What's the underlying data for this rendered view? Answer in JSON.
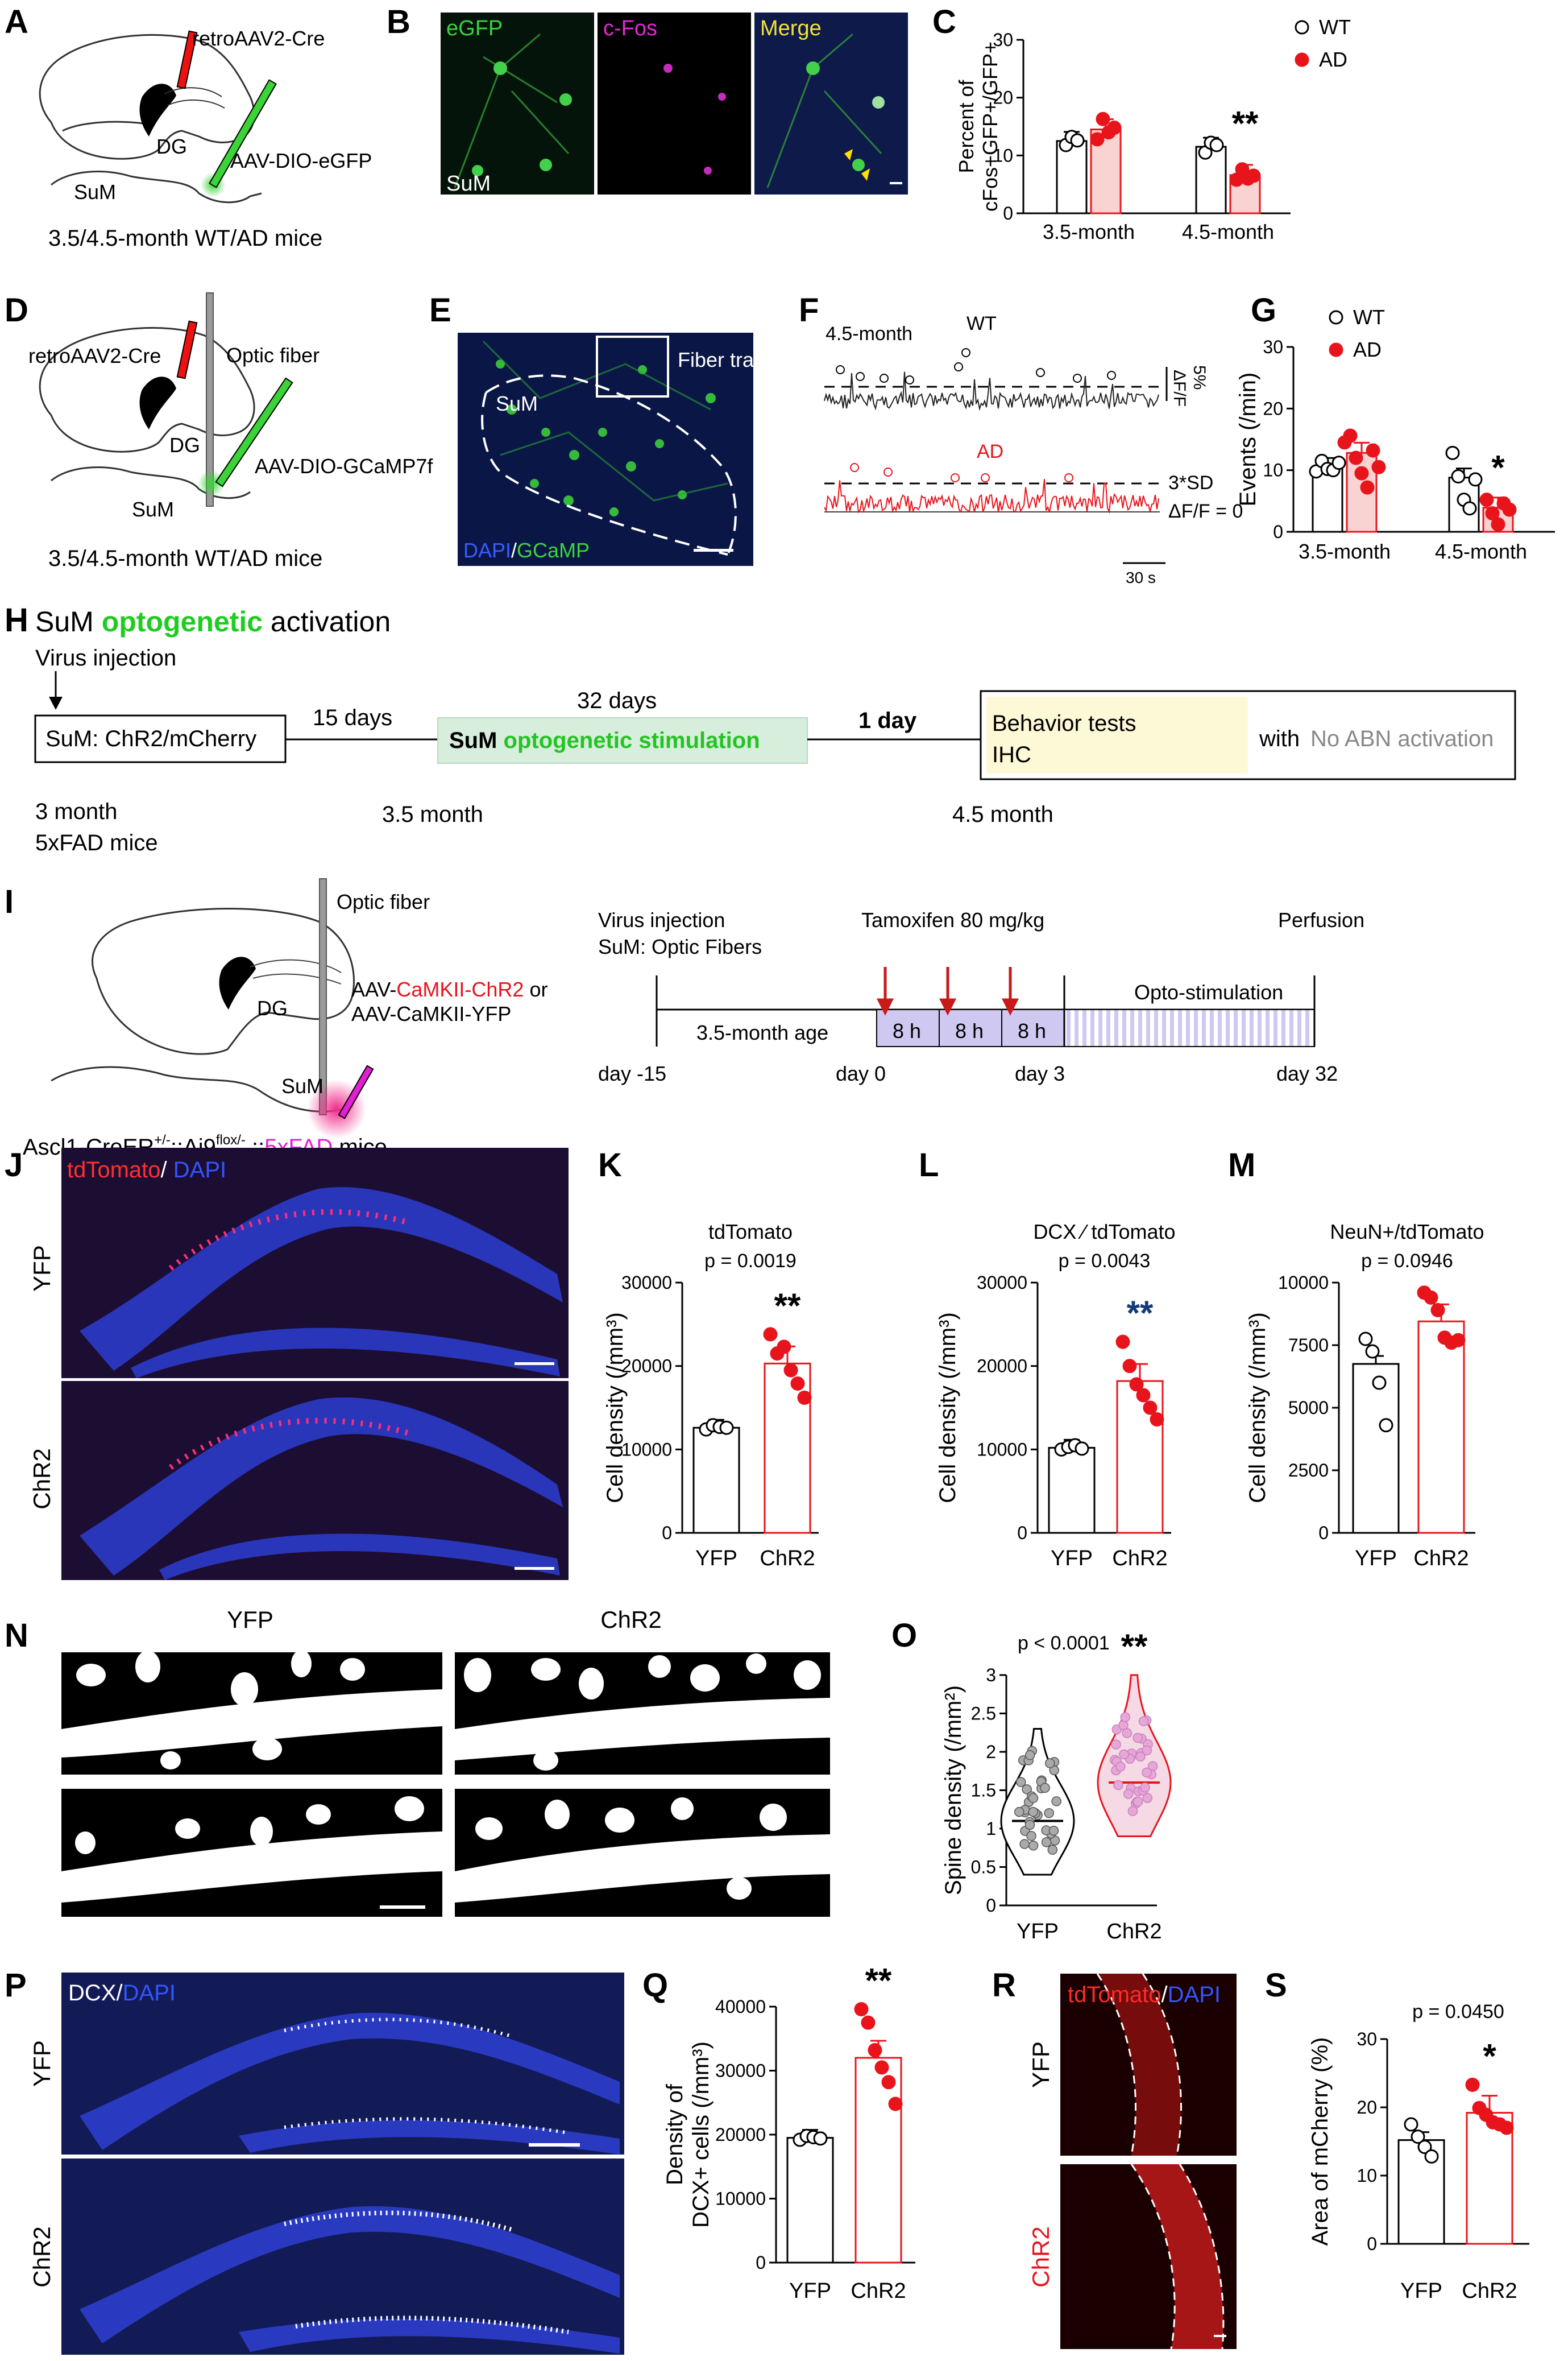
{
  "panel_letters": [
    "A",
    "B",
    "C",
    "D",
    "E",
    "F",
    "G",
    "H",
    "I",
    "J",
    "K",
    "L",
    "M",
    "N",
    "O",
    "P",
    "Q",
    "R",
    "S"
  ],
  "panelA": {
    "retro": "retroAAV2-Cre",
    "dg": "DG",
    "aav": "AAV-DIO-eGFP",
    "sum": "SuM",
    "caption": "3.5/4.5-month WT/AD mice"
  },
  "panelB": {
    "egfp": "eGFP",
    "cfos": "c-Fos",
    "merge": "Merge",
    "sum": "SuM"
  },
  "panelD": {
    "retro": "retroAAV2-Cre",
    "fiber": "Optic fiber",
    "dg": "DG",
    "aav": "AAV-DIO-GCaMP7f",
    "sum": "SuM",
    "caption": "3.5/4.5-month WT/AD mice"
  },
  "panelE": {
    "fiber_trace": "Fiber trace",
    "sum": "SuM",
    "dapi": "DAPI",
    "slash": "/",
    "gcamp": "GCaMP"
  },
  "panelF": {
    "age": "4.5-month",
    "wt": "WT",
    "ad": "AD",
    "df": "ΔF/F",
    "pct": "5%",
    "sd": "3*SD",
    "zero": "ΔF/F = 0",
    "scale": "30 s"
  },
  "panelH": {
    "title_a": "SuM ",
    "title_b": "optogenetic",
    "title_c": " activation",
    "virus": "Virus injection",
    "box1": "SuM: ChR2/mCherry",
    "days15": "15 days",
    "days32": "32 days",
    "box2_a": "SuM ",
    "box2_b": "optogenetic stimulation",
    "day1": "1 day",
    "behavior": "Behavior tests",
    "ihc": "IHC",
    "with": "with",
    "noabn": "No ABN activation",
    "m3": "3  month",
    "m3b": "5xFAD mice",
    "m35": "3.5 month",
    "m45": "4.5 month"
  },
  "panelI": {
    "fiber": "Optic fiber",
    "dg": "DG",
    "sum": "SuM",
    "aav1_a": "AAV-",
    "aav1_b": "CaMKII-ChR2",
    "aav1_c": " or",
    "aav2": "AAV-CaMKII-YFP",
    "mouse_a": "Ascl1-CreER",
    "mouse_sup1": "+/-",
    "mouse_b": "::Ai9",
    "mouse_sup2": "flox/-",
    "mouse_c": " ::",
    "mouse_d": "5xFAD",
    "mouse_e": " mice",
    "virus": "Virus injection",
    "optic": "SuM: Optic Fibers",
    "tamox": "Tamoxifen 80 mg/kg",
    "perfusion": "Perfusion",
    "age": "3.5-month age",
    "h8": "8 h",
    "opto": "Opto-stimulation",
    "dm15": "day -15",
    "d0": "day 0",
    "d3": "day 3",
    "d32": "day 32"
  },
  "panelJ": {
    "td": "tdTomato",
    "slash": "/ ",
    "dapi": "DAPI",
    "yfp": "YFP",
    "chr2": "ChR2"
  },
  "panelN": {
    "yfp": "YFP",
    "chr2": "ChR2"
  },
  "panelP": {
    "dcx": "DCX/",
    "dapi": "DAPI",
    "yfp": "YFP",
    "chr2": "ChR2"
  },
  "panelR": {
    "td": "tdTomato",
    "slash": "/",
    "dapi": "DAPI",
    "yfp": "YFP",
    "chr2": "ChR2"
  },
  "colors": {
    "wt": "#000000",
    "ad": "#e8141c",
    "ad_fill": "#f9d2d2",
    "green": "#27c61f",
    "magenta": "#e31fd2",
    "blue_cell": "#2346c8"
  },
  "chart_data": [
    {
      "id": "C",
      "type": "bar",
      "ylabel": "Percent of cFos+GFP+/GFP+",
      "ylim": [
        0,
        30
      ],
      "yticks": [
        0,
        10,
        20,
        30
      ],
      "categories": [
        "3.5-month",
        "4.5-month"
      ],
      "series": [
        {
          "name": "WT",
          "values": [
            12.5,
            11.5
          ]
        },
        {
          "name": "AD",
          "values": [
            14.5,
            6.6
          ]
        }
      ],
      "points": {
        "WT": [
          [
            11.8,
            13.2,
            12.6
          ],
          [
            10.5,
            12.2,
            11.8
          ]
        ],
        "AD": [
          [
            12.8,
            16.3,
            14.0,
            14.8
          ],
          [
            5.8,
            7.6,
            6.0,
            6.5
          ]
        ]
      },
      "annotations": [
        "**"
      ],
      "legend": [
        "WT",
        "AD"
      ],
      "legend_position": "top-right"
    },
    {
      "id": "G",
      "type": "bar",
      "ylabel": "Events (/min)",
      "ylim": [
        0,
        30
      ],
      "yticks": [
        0,
        10,
        20,
        30
      ],
      "categories": [
        "3.5-month",
        "4.5-month"
      ],
      "series": [
        {
          "name": "WT",
          "values": [
            10.5,
            8.8
          ]
        },
        {
          "name": "AD",
          "values": [
            12.8,
            3.9
          ]
        }
      ],
      "points": {
        "WT": [
          [
            9.8,
            11.5,
            10.2,
            10.0,
            11.2
          ],
          [
            12.8,
            9.0,
            5.2,
            3.8,
            8.5
          ]
        ],
        "AD": [
          [
            14.5,
            15.6,
            12.0,
            9.5,
            7.2,
            13.2,
            10.5
          ],
          [
            5.2,
            3.0,
            1.2,
            4.6,
            3.6
          ]
        ]
      },
      "annotations": [
        "*"
      ],
      "legend": [
        "WT",
        "AD"
      ],
      "legend_position": "top-right"
    },
    {
      "id": "K",
      "type": "bar",
      "title": "tdTomato",
      "pvalue": "p = 0.0019",
      "ylabel": "Cell density (/mm³)",
      "ylim": [
        0,
        30000
      ],
      "yticks": [
        0,
        10000,
        20000,
        30000
      ],
      "categories": [
        "YFP",
        "ChR2"
      ],
      "values": [
        12600,
        20300
      ],
      "points": [
        [
          12400,
          12900,
          12700,
          12600
        ],
        [
          23800,
          21500,
          22300,
          19500,
          17900,
          16200
        ]
      ],
      "annotations": [
        "**"
      ]
    },
    {
      "id": "L",
      "type": "bar",
      "title": "DCX ⁄ tdTomato",
      "pvalue": "p = 0.0043",
      "ylabel": "Cell density (/mm³)",
      "ylim": [
        0,
        30000
      ],
      "yticks": [
        0,
        10000,
        20000,
        30000
      ],
      "categories": [
        "YFP",
        "ChR2"
      ],
      "values": [
        10200,
        18200
      ],
      "points": [
        [
          10000,
          10300,
          10500,
          10100
        ],
        [
          22900,
          20000,
          17800,
          16500,
          15000,
          13600
        ]
      ],
      "annotations": [
        "**"
      ]
    },
    {
      "id": "M",
      "type": "bar",
      "title": "NeuN+/tdTomato",
      "pvalue": "p = 0.0946",
      "ylabel": "Cell density (/mm³)",
      "ylim": [
        0,
        10000
      ],
      "yticks": [
        0,
        2500,
        5000,
        7500,
        10000
      ],
      "categories": [
        "YFP",
        "ChR2"
      ],
      "values": [
        6750,
        8450
      ],
      "points": [
        [
          7750,
          7250,
          6000,
          4300
        ],
        [
          9600,
          9400,
          8900,
          7800,
          7600,
          7700
        ]
      ]
    },
    {
      "id": "O",
      "type": "violin",
      "pvalue": "p < 0.0001",
      "ylabel": "Spine density (/mm²)",
      "ylim": [
        0,
        3
      ],
      "yticks": [
        0,
        0.5,
        1.0,
        1.5,
        2.0,
        2.5,
        3.0
      ],
      "categories": [
        "YFP",
        "ChR2"
      ],
      "medians": [
        1.1,
        1.6
      ],
      "ranges": [
        [
          0.4,
          2.3
        ],
        [
          0.9,
          3.0
        ]
      ],
      "annotations": [
        "**"
      ]
    },
    {
      "id": "Q",
      "type": "bar",
      "ylabel": "Density of DCX+ cells (/mm³)",
      "ylim": [
        0,
        40000
      ],
      "yticks": [
        0,
        10000,
        20000,
        30000,
        40000
      ],
      "categories": [
        "YFP",
        "ChR2"
      ],
      "values": [
        19500,
        32000
      ],
      "points": [
        [
          19200,
          19800,
          19600,
          19400
        ],
        [
          39600,
          37500,
          33200,
          30500,
          28200,
          24800
        ]
      ],
      "annotations": [
        "**"
      ]
    },
    {
      "id": "S",
      "type": "bar",
      "pvalue": "p = 0.0450",
      "ylabel": "Area of mCherry (%)",
      "ylim": [
        0,
        30
      ],
      "yticks": [
        0,
        10,
        20,
        30
      ],
      "categories": [
        "YFP",
        "ChR2"
      ],
      "values": [
        15.2,
        19.2
      ],
      "points": [
        [
          17.5,
          15.7,
          14.2,
          12.8
        ],
        [
          23.3,
          19.9,
          18.9,
          17.8,
          17.5,
          17.0
        ]
      ],
      "annotations": [
        "*"
      ]
    }
  ]
}
